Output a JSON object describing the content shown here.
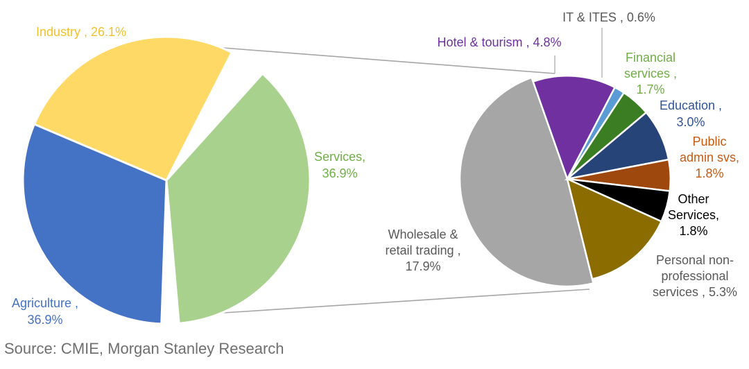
{
  "chart_data": [
    {
      "type": "pie",
      "slices": [
        {
          "name": "Agriculture ,",
          "value_label": "36.9%",
          "value": 36.9,
          "color": "#4472C4"
        },
        {
          "name": "Services,",
          "value_label": "36.9%",
          "value": 36.9,
          "color": "#A9D18E"
        },
        {
          "name": "Industry ,",
          "value_label": "26.1%",
          "value": 26.1,
          "color": "#FFD966"
        }
      ]
    },
    {
      "type": "pie",
      "breakdown_of": "Services,",
      "slices": [
        {
          "name": "Wholesale & retail trading ,",
          "value_label": "17.9%",
          "value": 17.9,
          "color": "#A6A6A6"
        },
        {
          "name": "Hotel & tourism ,",
          "value_label": "4.8%",
          "value": 4.8,
          "color": "#7030A0"
        },
        {
          "name": "IT & ITES ,",
          "value_label": "0.6%",
          "value": 0.6,
          "color": "#5B9BD5"
        },
        {
          "name": "Financial services ,",
          "value_label": "1.7%",
          "value": 1.7,
          "color": "#3A7D23"
        },
        {
          "name": "Education ,",
          "value_label": "3.0%",
          "value": 3.0,
          "color": "#264478"
        },
        {
          "name": "Public admin svs,",
          "value_label": "1.8%",
          "value": 1.8,
          "color": "#9E480E"
        },
        {
          "name": "Other Services,",
          "value_label": "1.8%",
          "value": 1.8,
          "color": "#000000"
        },
        {
          "name": "Personal non-professional services ,",
          "value_label": "5.3%",
          "value": 5.3,
          "color": "#8B6C00"
        }
      ]
    }
  ],
  "labels": {
    "industry": {
      "text": "Industry , 26.1%",
      "color": "#F2C12E"
    },
    "services": {
      "line1": "Services,",
      "line2": "36.9%",
      "color": "#70AD47"
    },
    "agriculture": {
      "line1": "Agriculture ,",
      "line2": "36.9%",
      "color": "#4472C4"
    },
    "it": {
      "text": "IT & ITES , 0.6%",
      "color": "#595959"
    },
    "hotel": {
      "text": "Hotel & tourism , 4.8%",
      "color": "#7030A0"
    },
    "financial": {
      "line1": "Financial",
      "line2": "services ,",
      "line3": "1.7%",
      "color": "#70AD47"
    },
    "education": {
      "line1": "Education ,",
      "line2": "3.0%",
      "color": "#2F5597"
    },
    "public": {
      "line1": "Public",
      "line2": "admin svs,",
      "line3": "1.8%",
      "color": "#C55A11"
    },
    "other": {
      "line1": "Other",
      "line2": "Services,",
      "line3": "1.8%",
      "color": "#000000"
    },
    "personal": {
      "line1": "Personal non-",
      "line2": "professional",
      "line3": "services , 5.3%",
      "color": "#595959"
    },
    "wholesale": {
      "line1": "Wholesale &",
      "line2": "retail trading ,",
      "line3": "17.9%",
      "color": "#595959"
    }
  },
  "source": "Source: CMIE, Morgan Stanley Research"
}
